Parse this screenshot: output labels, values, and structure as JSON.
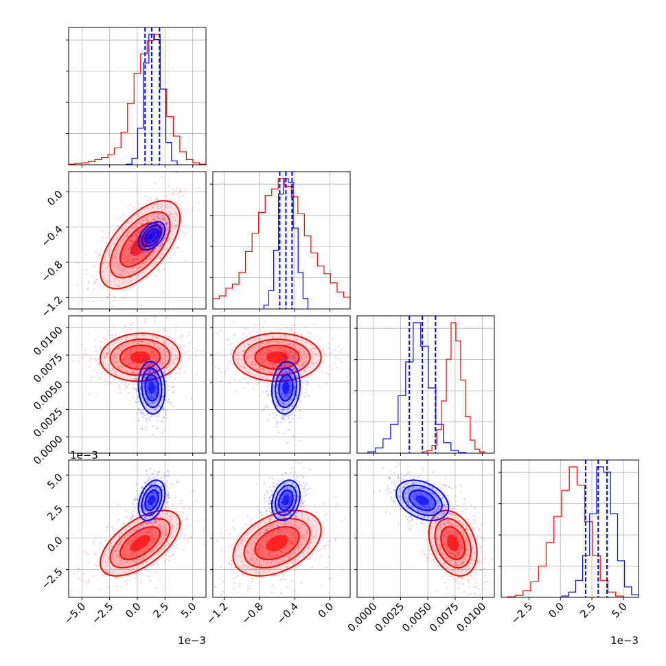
{
  "colors": {
    "red": "#ff0000",
    "blue": "#0000ff",
    "grid": "#b0b0b0",
    "axis": "#000000"
  },
  "chart_data": {
    "type": "corner",
    "params": [
      {
        "range": [
          -6.2,
          6.2
        ],
        "ticks": [
          -5.0,
          -2.5,
          0.0,
          2.5,
          5.0
        ],
        "tick_labels": [
          "−5.0",
          "−2.5",
          "0.0",
          "2.5",
          "5.0"
        ],
        "offset": "1e−3"
      },
      {
        "range": [
          -1.33,
          0.23
        ],
        "ticks": [
          -1.2,
          -0.8,
          -0.4,
          0.0
        ],
        "tick_labels": [
          "−1.2",
          "−0.8",
          "−0.4",
          "0.0"
        ],
        "offset": ""
      },
      {
        "range": [
          -0.0015,
          0.0111
        ],
        "ticks": [
          0.0,
          0.0025,
          0.005,
          0.0075,
          0.01
        ],
        "tick_labels": [
          "0.0000",
          "0.0025",
          "0.0050",
          "0.0075",
          "0.0100"
        ],
        "offset": ""
      },
      {
        "range": [
          -4.7,
          6.2
        ],
        "ticks": [
          -2.5,
          0.0,
          2.5,
          5.0
        ],
        "tick_labels": [
          "−2.5",
          "0.0",
          "2.5",
          "5.0"
        ],
        "offset": "1e−3"
      }
    ],
    "series": [
      {
        "color": "red",
        "mean": [
          0.25,
          -0.6,
          0.0073,
          -0.4
        ],
        "std": [
          1.8,
          0.25,
          0.0011,
          1.3
        ],
        "corr": [
          [
            1,
            0.6,
            0.05,
            0.6
          ],
          [
            0.6,
            1,
            0.0,
            0.4
          ],
          [
            0.05,
            0.0,
            1,
            -0.3
          ],
          [
            0.6,
            0.4,
            -0.3,
            1
          ]
        ],
        "hist": [
          [
            0.5,
            1,
            1.5,
            2.5,
            4,
            5.5,
            8,
            13,
            25,
            47,
            70,
            85,
            95,
            100,
            58,
            37,
            22,
            10,
            4,
            1.5,
            0.5
          ],
          [
            8,
            10,
            16,
            19,
            28,
            44,
            58,
            74,
            87,
            92,
            100,
            94,
            86,
            73,
            56,
            43,
            33,
            27,
            20,
            13,
            9
          ],
          [
            1,
            2,
            6,
            18,
            40,
            72,
            100,
            86,
            56,
            28,
            10,
            3,
            1
          ],
          [
            0.5,
            1.5,
            5,
            12,
            24,
            42,
            62,
            82,
            100,
            86,
            58,
            32,
            13,
            4,
            1
          ]
        ]
      },
      {
        "color": "blue",
        "mean": [
          1.3,
          -0.5,
          0.0045,
          3.0
        ],
        "std": [
          0.6,
          0.08,
          0.0012,
          0.8
        ],
        "corr": [
          [
            1,
            0.45,
            -0.1,
            0.35
          ],
          [
            0.45,
            1,
            0.1,
            0.25
          ],
          [
            -0.1,
            0.1,
            1,
            -0.35
          ],
          [
            0.35,
            0.25,
            -0.35,
            1
          ]
        ],
        "hist": [
          [
            0.5,
            5,
            28,
            78,
            100,
            96,
            58,
            17,
            3
          ],
          [
            3,
            14,
            45,
            88,
            100,
            97,
            62,
            28,
            8
          ],
          [
            1,
            4,
            11,
            22,
            44,
            70,
            100,
            82,
            50,
            22,
            8,
            2,
            0.5
          ],
          [
            1,
            4,
            13,
            32,
            64,
            100,
            96,
            64,
            28,
            8,
            2
          ]
        ],
        "quantiles": [
          [
            0.7,
            1.3,
            2.0
          ],
          [
            -0.57,
            -0.5,
            -0.43
          ],
          [
            0.0033,
            0.0045,
            0.0057
          ],
          [
            2.0,
            3.0,
            3.7
          ]
        ]
      }
    ],
    "hist_ranges": [
      {
        "red": [
          -6.2,
          6.2
        ],
        "blue": [
          -1.0,
          3.6
        ]
      },
      {
        "red": [
          -1.33,
          0.23
        ],
        "blue": [
          -0.75,
          -0.25
        ]
      },
      {
        "red": [
          0.0045,
          0.0102
        ],
        "blue": [
          -0.0005,
          0.0085
        ]
      },
      {
        "red": [
          -4.2,
          5.0
        ],
        "blue": [
          0.1,
          6.2
        ]
      }
    ]
  }
}
